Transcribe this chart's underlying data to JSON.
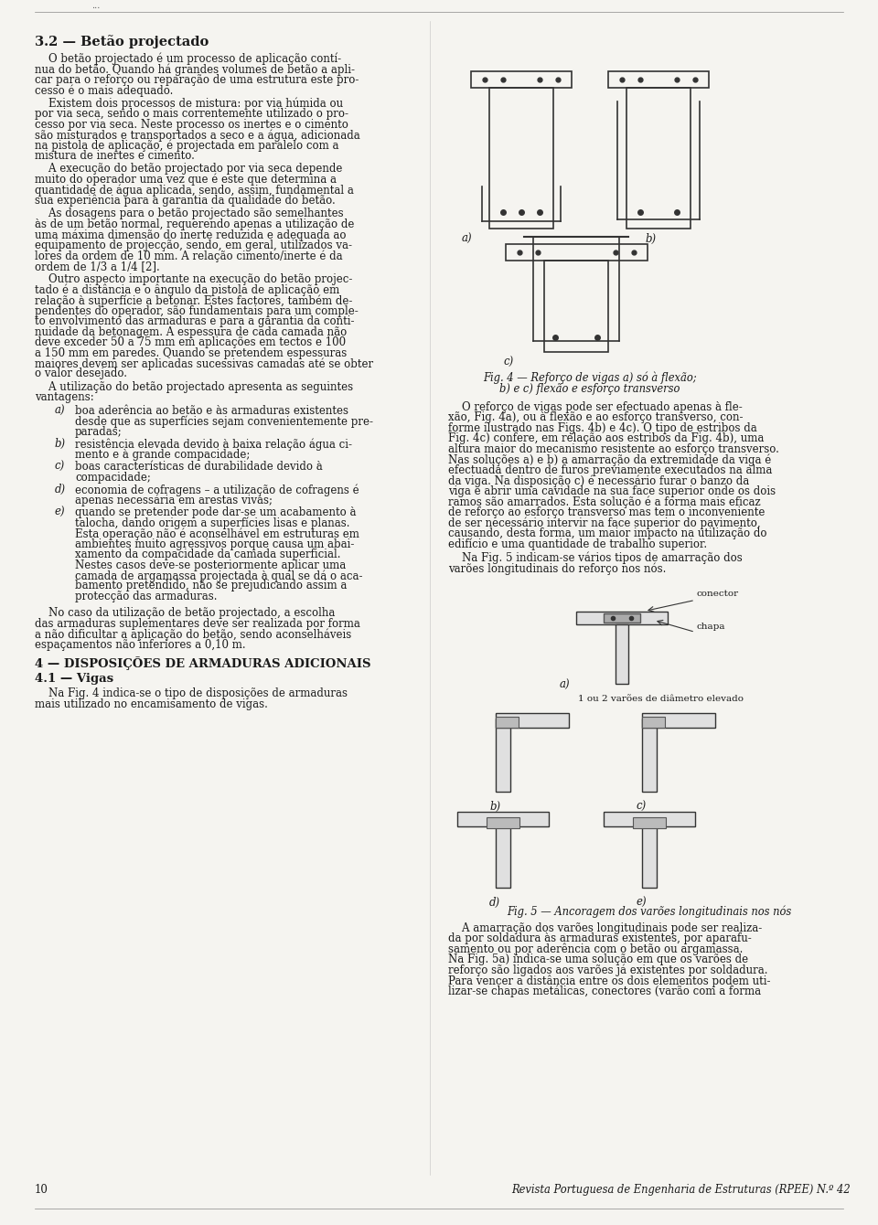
{
  "bg_color": "#f5f4f0",
  "text_color": "#1a1a1a",
  "page_number": "10",
  "journal_name": "Revista Portuguesa de Engenharia de Estruturas (RPEE) N.º 42",
  "header_text": "3.2 — Betão projectado",
  "col1_paragraphs": [
    "O betão projectado é um processo de aplicação contí-nua do betão. Quando há grandes volumes de betão a apli-car para o reforço ou reparação de uma estrutura este pro-cesso é o mais adequado.",
    "Existem dois processos de mistura: por via húmida ou por via seca, sendo o mais correntemente utilizado o pro-cesso por via seca. Neste processo os inertes e o cimento são misturados e transportados a seco e a água, adicionada na pistola de aplicação, é projectada em paralelo com a mistura de inertes e cimento.",
    "A execução do betão projectado por via seca depende muito do operador uma vez que é este que determina a quantidade de água aplicada, sendo, assim, fundamental a sua experiência para a garantia da qualidade do betão.",
    "As dosagens para o betão projectado são semelhantes às de um betão normal, requerendo apenas a utilização de uma máxima dimensão do inerte reduzida e adequada ao equipamento de projecção, sendo, em geral, utilizados va-lores da ordem de 10 mm. A relação cimento/inerte é da ordem de 1/3 a 1/4 [2].",
    "Outro aspecto importante na execução do betão projec-tado é a distância e o ângulo da pistola de aplicação em relação à superfície a betonar. Estes factores, também de-pendentes do operador, são fundamentais para um comple-to envolvimento das armaduras e para a garantia da conti-nuidade da betonagem. A espessura de cada camada não deve exceder 50 a 75 mm em aplicações em tectos e 100 a 150 mm em paredes. Quando se pretendem espessuras maiores devem ser aplicadas sucessivas camadas até se obter o valor desejado.",
    "A utilização do betão projectado apresenta as seguintes vantagens:"
  ],
  "list_items": [
    [
      "a)",
      "boa aderência ao betão e às armaduras existentes desde que as superfícies sejam convenientemente pre-paradas;"
    ],
    [
      "b)",
      "resistência elevada devido à baixa relação água ci-mento e à grande compacidade;"
    ],
    [
      "c)",
      "boas características de durabilidade devido à compacidade;"
    ],
    [
      "d)",
      "economia de cofragens – a utilização de cofragens é apenas necessária em arestas vivas;"
    ],
    [
      "e)",
      "quando se pretender pode dar-se um acabamento à talocha, dando origem a superfícies lisas e planas. Esta operação não é aconselhável em estruturas em ambientes muito agressivos porque causa um abai-xamento da compacidade da camada superficial. Nestes casos deve-se posteriormente aplicar uma camada de argamassa projectada à qual se dá o aca-bamento pretendido, não se prejudicando assim a proteção das armaduras."
    ]
  ],
  "col1_bottom_para": "No caso da utilização de betão projectado, a escolha das armaduras suplementares deve ser realizada por forma a não dificultar a aplicação do betão, sendo aconselhoáveis espaçamentos não inferiores a 0,10 m.",
  "section4_header": "4 — DISPOSIÇÕES DE ARMADURAS ADICIONAIS",
  "section41_header": "4.1 — Vigas",
  "col1_last_para": "Na Fig. 4 indica-se o tipo de disposições de armaduras mais utilizado no encamisamento de vigas.",
  "fig4_caption": "Fig. 4 — Reforço de vigas a) só à flexão;\nb) e c) flexão e esforço transverso",
  "col2_para1": "O reforço de vigas pode ser efectuado apenas à flexão, Fig. 4a), ou à flexão e ao esforço transverso, conforme ilustrado nas Figs. 4b) e 4c). O tipo de estribos da Fig. 4c) confere, em relação aos estribos da Fig. 4b), uma altura maior do mecanismo resistente ao esforço transverso. Nas soluções a) e b) a amarrção da extremidade da viga é efectuada dentro de furos previamente executados na alma da viga. Na disposição c) é necessário furar o banzo da viga e abrir uma cavidade na sua face superior onde os dois ramos são amarrados. Esta solução é a forma mais eficaz de reforço ao esforço transverso mas tem o inconveniente de ser necessário intervir na face superior do pavimento, causando, desta forma, um maior impacto na utilização do edifício e uma quantidade de trabalho superior.",
  "col2_para2": "Na Fig. 5 indicam-se vários tipos de amarrção dos varões longitudinais do reforço nos nós.",
  "fig5_caption": "Fig. 5 — Ancoragem dos varões longitudinais nos nós",
  "col2_para3": "A amarrção dos varões longitudinais pode ser realiza-da por soldadura às armaduras existentes, por aparafu-samento ou por aderência com o betão ou argamassa. Na Fig. 5a) indica-se uma solução em que os varões de reforço são ligados aos varões já existentes por soldadura. Para vencer a distância entre os dois elementos podem uti-lizar-se chapas metálicas, conectores (varão com a forma"
}
